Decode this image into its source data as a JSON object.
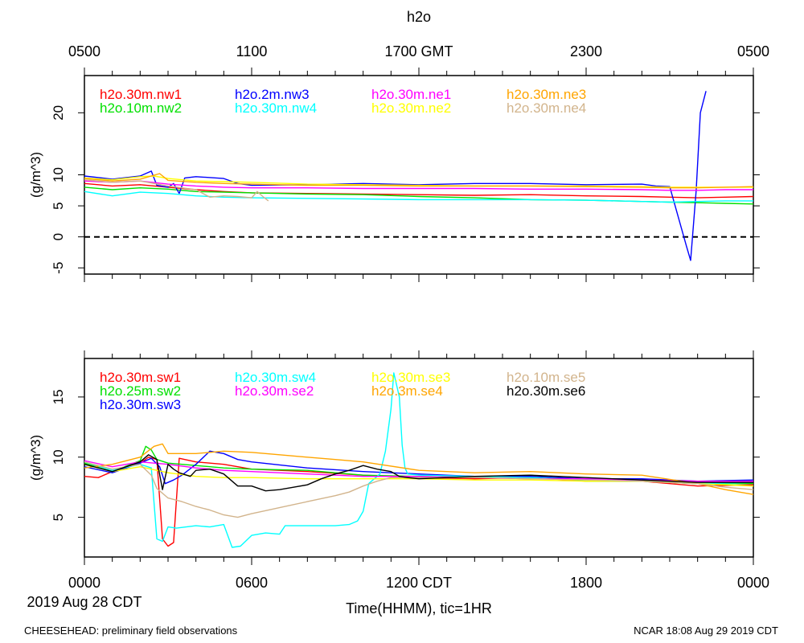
{
  "title": "h2o",
  "top_axis": {
    "ticks": [
      "0500",
      "1100",
      "1700 GMT",
      "2300",
      "0500"
    ]
  },
  "bottom_axis": {
    "ticks": [
      "0000",
      "0600",
      "1200 CDT",
      "1800",
      "0000"
    ],
    "xlabel": "Time(HHMM), tic=1HR",
    "date": "2019 Aug 28 CDT"
  },
  "footer": {
    "left": "CHEESEHEAD: preliminary field observations",
    "right": "NCAR 18:08 Aug 29 2019 CDT"
  },
  "chart_data": [
    {
      "type": "line",
      "panel": "top",
      "ylabel": "(g/m^3)",
      "xlim": [
        0,
        24
      ],
      "ylim": [
        -6,
        26
      ],
      "yticks": [
        -5,
        0,
        5,
        10,
        20
      ],
      "zero_line": true,
      "series": [
        {
          "name": "h2o.30m.nw1",
          "color": "#ff0000",
          "x": [
            0,
            1,
            2,
            3,
            4,
            5,
            6,
            8,
            10,
            12,
            14,
            16,
            18,
            20,
            21,
            22,
            23,
            24
          ],
          "y": [
            8.6,
            8.2,
            8.4,
            8.0,
            7.6,
            7.3,
            7.1,
            7.0,
            6.9,
            6.8,
            6.7,
            6.8,
            6.6,
            6.5,
            6.4,
            6.3,
            6.4,
            6.5
          ]
        },
        {
          "name": "h2o.10m.nw2",
          "color": "#00e000",
          "x": [
            0,
            1,
            2,
            3,
            4,
            5,
            6,
            8,
            10,
            12,
            14,
            16,
            18,
            20,
            21,
            22,
            23,
            24
          ],
          "y": [
            8.0,
            7.6,
            7.9,
            7.7,
            7.3,
            7.2,
            7.1,
            6.9,
            6.8,
            6.5,
            6.3,
            6.0,
            5.9,
            5.7,
            5.6,
            5.5,
            5.4,
            5.3
          ]
        },
        {
          "name": "h2o.2m.nw3",
          "color": "#0000ff",
          "x": [
            0,
            1,
            2,
            2.4,
            2.6,
            3,
            3.2,
            3.4,
            3.6,
            4,
            5,
            5.5,
            6,
            8,
            10,
            12,
            14,
            16,
            18,
            20,
            20.5,
            21,
            21.6,
            21.75,
            21.95,
            22.1,
            22.3
          ],
          "y": [
            9.8,
            9.3,
            9.8,
            10.6,
            8.3,
            8.0,
            8.6,
            7.0,
            9.5,
            9.7,
            9.4,
            8.6,
            8.3,
            8.4,
            8.6,
            8.4,
            8.6,
            8.6,
            8.4,
            8.5,
            8.2,
            8.1,
            -1.5,
            -3.8,
            7.5,
            20,
            23.5
          ]
        },
        {
          "name": "h2o.30m.nw4",
          "color": "#00ffff",
          "x": [
            0,
            1,
            2,
            3,
            4,
            5,
            6,
            8,
            10,
            12,
            14,
            16,
            18,
            20,
            21,
            22,
            23,
            24
          ],
          "y": [
            7.3,
            6.6,
            7.2,
            7.0,
            6.6,
            6.4,
            6.3,
            6.2,
            6.1,
            6.0,
            6.0,
            6.0,
            5.9,
            5.7,
            5.6,
            5.7,
            5.8,
            5.8
          ]
        },
        {
          "name": "h2o.30m.ne1",
          "color": "#ff00ff",
          "x": [
            0,
            1,
            2,
            3,
            4,
            5,
            6,
            8,
            10,
            12,
            14,
            16,
            18,
            20,
            21,
            22,
            23,
            24
          ],
          "y": [
            9.0,
            8.8,
            9.0,
            8.5,
            8.2,
            8.0,
            7.9,
            7.9,
            7.8,
            7.8,
            7.8,
            7.7,
            7.7,
            7.6,
            7.5,
            7.5,
            7.6,
            7.6
          ]
        },
        {
          "name": "h2o.30m.ne2",
          "color": "#ffff00",
          "x": [
            0,
            1,
            2,
            2.5,
            3,
            4,
            5,
            6,
            8,
            10,
            12,
            14,
            16,
            18,
            20,
            21,
            22,
            23,
            24
          ],
          "y": [
            9.5,
            9.2,
            9.7,
            9.8,
            9.4,
            9.0,
            8.9,
            8.8,
            8.5,
            8.4,
            8.3,
            8.2,
            8.2,
            8.2,
            8.1,
            8.0,
            8.0,
            8.0,
            8.0
          ]
        },
        {
          "name": "h2o.30m.ne3",
          "color": "#ffa500",
          "x": [
            0,
            1,
            2,
            2.7,
            3,
            4,
            5,
            6,
            8,
            10,
            12,
            14,
            16,
            18,
            20,
            21,
            22,
            23,
            24
          ],
          "y": [
            9.4,
            9.0,
            9.3,
            10.2,
            9.1,
            8.8,
            8.6,
            8.5,
            8.3,
            8.3,
            8.2,
            8.2,
            8.2,
            8.1,
            8.0,
            7.9,
            7.9,
            8.0,
            8.1
          ]
        },
        {
          "name": "h2o.30m.ne4",
          "color": "#d2b48c",
          "x": [
            0,
            1,
            2,
            3,
            4,
            4.5,
            5,
            5.5,
            6,
            6.2,
            6.4,
            6.6
          ],
          "y": [
            9.2,
            8.8,
            9.0,
            8.2,
            7.6,
            6.4,
            6.6,
            6.5,
            6.3,
            7.3,
            6.5,
            5.8
          ]
        }
      ]
    },
    {
      "type": "line",
      "panel": "bottom",
      "ylabel": "(g/m^3)",
      "xlim": [
        0,
        24
      ],
      "ylim": [
        1.7,
        18.2
      ],
      "yticks": [
        5,
        10,
        15
      ],
      "series": [
        {
          "name": "h2o.30m.sw1",
          "color": "#ff0000",
          "x": [
            0,
            0.5,
            1,
            2,
            2.3,
            2.6,
            2.8,
            3.0,
            3.2,
            3.4,
            4,
            5,
            6,
            8,
            10,
            12,
            14,
            16,
            18,
            20,
            22,
            24
          ],
          "y": [
            8.4,
            8.3,
            8.8,
            9.5,
            10.0,
            9.8,
            3.2,
            2.6,
            2.9,
            9.9,
            9.6,
            9.4,
            9.0,
            8.8,
            8.5,
            8.3,
            8.2,
            8.3,
            8.0,
            8.0,
            7.6,
            7.7
          ]
        },
        {
          "name": "h2o.25m.sw2",
          "color": "#00e000",
          "x": [
            0,
            1,
            2,
            2.2,
            2.4,
            2.6,
            3,
            4,
            5,
            6,
            8,
            10,
            12,
            14,
            16,
            18,
            20,
            22,
            24
          ],
          "y": [
            9.5,
            8.8,
            9.7,
            10.9,
            10.6,
            9.8,
            9.5,
            9.3,
            9.1,
            9.0,
            8.9,
            8.5,
            8.4,
            8.3,
            8.5,
            8.0,
            8.0,
            7.8,
            7.8
          ]
        },
        {
          "name": "h2o.30m.sw3",
          "color": "#0000ff",
          "x": [
            0,
            1,
            2,
            2.4,
            2.7,
            2.9,
            3.2,
            3.5,
            4,
            4.5,
            5,
            5.5,
            6,
            8,
            10,
            12,
            14,
            16,
            18,
            20,
            22,
            24
          ],
          "y": [
            9.2,
            8.7,
            9.5,
            9.9,
            9.2,
            7.8,
            8.1,
            8.5,
            9.4,
            10.5,
            10.3,
            9.8,
            9.6,
            9.1,
            8.8,
            8.6,
            8.4,
            8.4,
            8.2,
            8.2,
            8.0,
            8.1
          ]
        },
        {
          "name": "h2o.30m.sw4",
          "color": "#00ffff",
          "x": [
            0,
            1,
            2,
            2.4,
            2.6,
            2.8,
            3.0,
            3.3,
            4,
            4.5,
            5,
            5.3,
            5.6,
            6,
            6.5,
            7.0,
            7.2,
            8,
            9,
            9.5,
            9.8,
            10,
            10.2,
            10.6,
            10.8,
            11,
            11.1,
            11.3,
            11.4,
            11.5,
            11.6,
            12,
            14,
            16,
            18,
            20,
            22,
            24
          ],
          "y": [
            9.6,
            8.9,
            9.4,
            9.1,
            3.2,
            3.0,
            4.2,
            4.1,
            4.3,
            4.2,
            4.4,
            2.5,
            2.6,
            3.5,
            3.7,
            3.6,
            4.3,
            4.3,
            4.3,
            4.4,
            4.7,
            5.5,
            7.8,
            8.6,
            10.5,
            14,
            17,
            15,
            11,
            9.1,
            8.6,
            8.5,
            8.4,
            8.3,
            8.1,
            8.0,
            7.8,
            7.9
          ]
        },
        {
          "name": "h2o.30m.se2",
          "color": "#ff00ff",
          "x": [
            0,
            1,
            2,
            3,
            4,
            5,
            6,
            8,
            10,
            12,
            14,
            16,
            18,
            20,
            22,
            24
          ],
          "y": [
            9.7,
            9.2,
            9.6,
            9.4,
            9.1,
            8.9,
            8.8,
            8.6,
            8.4,
            8.4,
            8.3,
            8.2,
            8.2,
            8.1,
            8.0,
            8.0
          ]
        },
        {
          "name": "h2o.3m.se4",
          "color": "#ffa500",
          "x": [
            0,
            1,
            2,
            2.5,
            2.8,
            3,
            4,
            5,
            6,
            7,
            8,
            9,
            10,
            12,
            14,
            16,
            18,
            20,
            22,
            23,
            24
          ],
          "y": [
            9.1,
            9.4,
            10.0,
            10.9,
            11.1,
            10.3,
            10.3,
            10.5,
            10.4,
            10.2,
            10.0,
            9.8,
            9.6,
            8.9,
            8.7,
            8.8,
            8.6,
            8.5,
            7.8,
            7.3,
            6.9
          ]
        },
        {
          "name": "h2o.30m.se3",
          "color": "#ffff00",
          "x": [
            0,
            1,
            2,
            3,
            4,
            5,
            6,
            8,
            10,
            12,
            14,
            16,
            18,
            20,
            22,
            24
          ],
          "y": [
            9.4,
            8.8,
            9.2,
            8.7,
            8.4,
            8.3,
            8.3,
            8.2,
            8.2,
            8.2,
            8.1,
            8.1,
            8.0,
            8.0,
            7.8,
            7.6
          ]
        },
        {
          "name": "h2o.10m.se5",
          "color": "#d2b48c",
          "x": [
            0,
            1,
            2,
            2.4,
            2.6,
            3,
            3.5,
            4,
            4.5,
            5,
            5.5,
            6,
            7,
            8,
            9,
            9.5,
            10,
            10.5,
            11,
            12,
            14,
            16,
            18,
            20,
            22,
            23,
            24
          ],
          "y": [
            9.6,
            9.0,
            9.4,
            8.5,
            7.4,
            6.6,
            6.3,
            5.9,
            5.6,
            5.2,
            5.0,
            5.3,
            5.8,
            6.3,
            6.8,
            7.1,
            7.6,
            8.0,
            8.3,
            8.3,
            8.3,
            8.2,
            8.1,
            8.0,
            7.8,
            7.5,
            7.3
          ]
        },
        {
          "name": "h2o.30m.se6",
          "color": "#000000",
          "x": [
            0,
            1,
            2,
            2.3,
            2.6,
            2.8,
            3,
            3.2,
            3.4,
            3.8,
            4,
            4.5,
            5,
            5.5,
            6,
            6.5,
            7,
            7.5,
            8,
            8.5,
            9,
            9.5,
            10,
            10.5,
            11,
            11.3,
            11.6,
            12,
            14,
            16,
            18,
            20,
            22,
            24
          ],
          "y": [
            9.4,
            8.8,
            9.6,
            10.2,
            9.8,
            7.3,
            9.4,
            9.0,
            8.7,
            8.4,
            8.9,
            9.0,
            8.6,
            7.6,
            7.6,
            7.2,
            7.3,
            7.5,
            7.7,
            8.2,
            8.6,
            8.9,
            9.3,
            9.0,
            8.8,
            8.4,
            8.3,
            8.2,
            8.4,
            8.5,
            8.3,
            8.1,
            7.9,
            7.9
          ]
        }
      ]
    }
  ]
}
